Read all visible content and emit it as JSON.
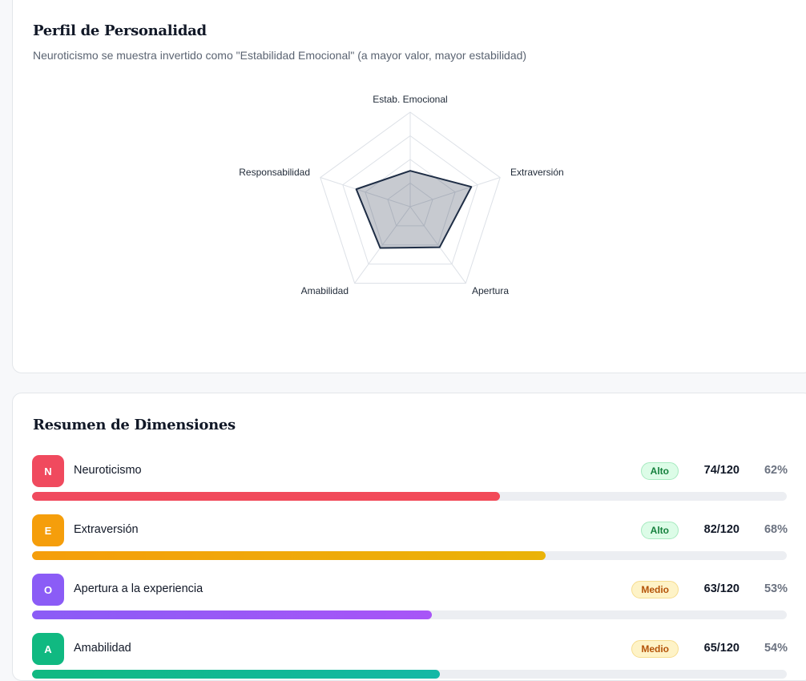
{
  "profile": {
    "title": "Perfil de Personalidad",
    "subtitle": "Neuroticismo se muestra invertido como \"Estabilidad Emocional\" (a mayor valor, mayor estabilidad)"
  },
  "chart_data": {
    "type": "radar",
    "axes": [
      "Estab. Emocional",
      "Extraversión",
      "Apertura",
      "Amabilidad",
      "Responsabilidad"
    ],
    "values": [
      38,
      68,
      53,
      54,
      60
    ],
    "max": 100,
    "grid_levels": 4,
    "grid": true,
    "fill_color": "#1e2d45",
    "line_color": "#1e2d45"
  },
  "summary": {
    "title": "Resumen de Dimensiones",
    "dimensions": [
      {
        "letter": "N",
        "name": "Neuroticismo",
        "level": "Alto",
        "score": "74/120",
        "percent": "62%",
        "fraction": 0.62,
        "colors": [
          "#f04a5e",
          "#f24a58"
        ]
      },
      {
        "letter": "E",
        "name": "Extraversión",
        "level": "Alto",
        "score": "82/120",
        "percent": "68%",
        "fraction": 0.68,
        "colors": [
          "#f59e0b",
          "#eab308"
        ]
      },
      {
        "letter": "O",
        "name": "Apertura a la experiencia",
        "level": "Medio",
        "score": "63/120",
        "percent": "53%",
        "fraction": 0.53,
        "colors": [
          "#8b5cf6",
          "#a855f7"
        ]
      },
      {
        "letter": "A",
        "name": "Amabilidad",
        "level": "Medio",
        "score": "65/120",
        "percent": "54%",
        "fraction": 0.54,
        "colors": [
          "#10b981",
          "#14b8a6"
        ]
      }
    ]
  }
}
